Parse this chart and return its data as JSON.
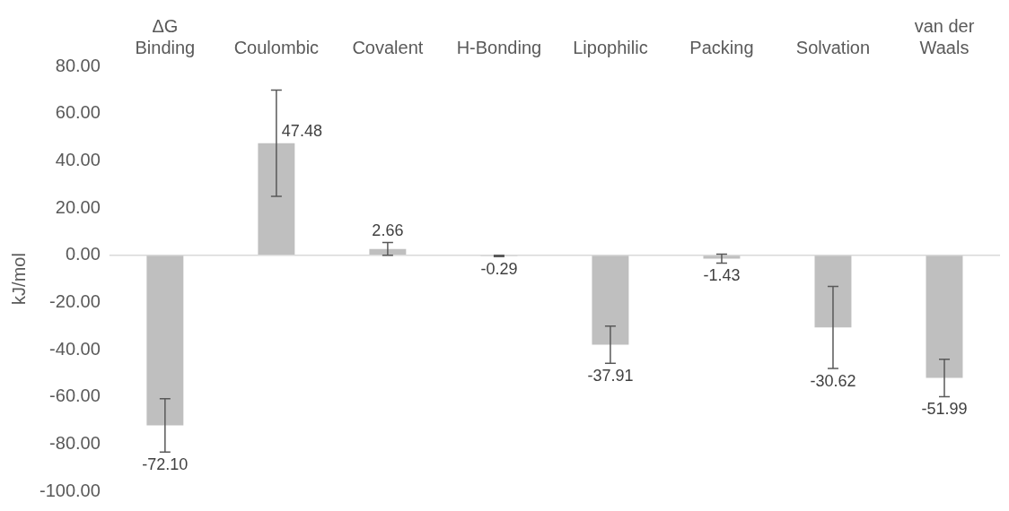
{
  "chart_data": {
    "type": "bar",
    "ylabel": "kJ/mol",
    "categories": [
      "ΔG Binding",
      "Coulombic",
      "Covalent",
      "H-Bonding",
      "Lipophilic",
      "Packing",
      "Solvation",
      "van der Waals"
    ],
    "values": [
      -72.1,
      47.48,
      2.66,
      -0.29,
      -37.91,
      -1.43,
      -30.62,
      -51.99
    ],
    "value_labels": [
      "-72.10",
      "47.48",
      "2.66",
      "-0.29",
      "-37.91",
      "-1.43",
      "-30.62",
      "-51.99"
    ],
    "errors": [
      11.3,
      22.5,
      2.7,
      0.3,
      7.9,
      1.9,
      17.4,
      7.9
    ],
    "color": "#bfbfbf",
    "ylim": [
      -100,
      80
    ],
    "yticks": [
      {
        "value": -100,
        "label": "-100.00"
      },
      {
        "value": -80,
        "label": "-80.00"
      },
      {
        "value": -60,
        "label": "-60.00"
      },
      {
        "value": -40,
        "label": "-40.00"
      },
      {
        "value": -20,
        "label": "-20.00"
      },
      {
        "value": 0,
        "label": "0.00"
      },
      {
        "value": 20,
        "label": "20.00"
      },
      {
        "value": 40,
        "label": "40.00"
      },
      {
        "value": 60,
        "label": "60.00"
      },
      {
        "value": 80,
        "label": "80.00"
      }
    ],
    "ref_lines": [
      {
        "axis": "y",
        "value": 0,
        "color": "#d9d9d9"
      }
    ],
    "grid": false,
    "legend": false
  }
}
